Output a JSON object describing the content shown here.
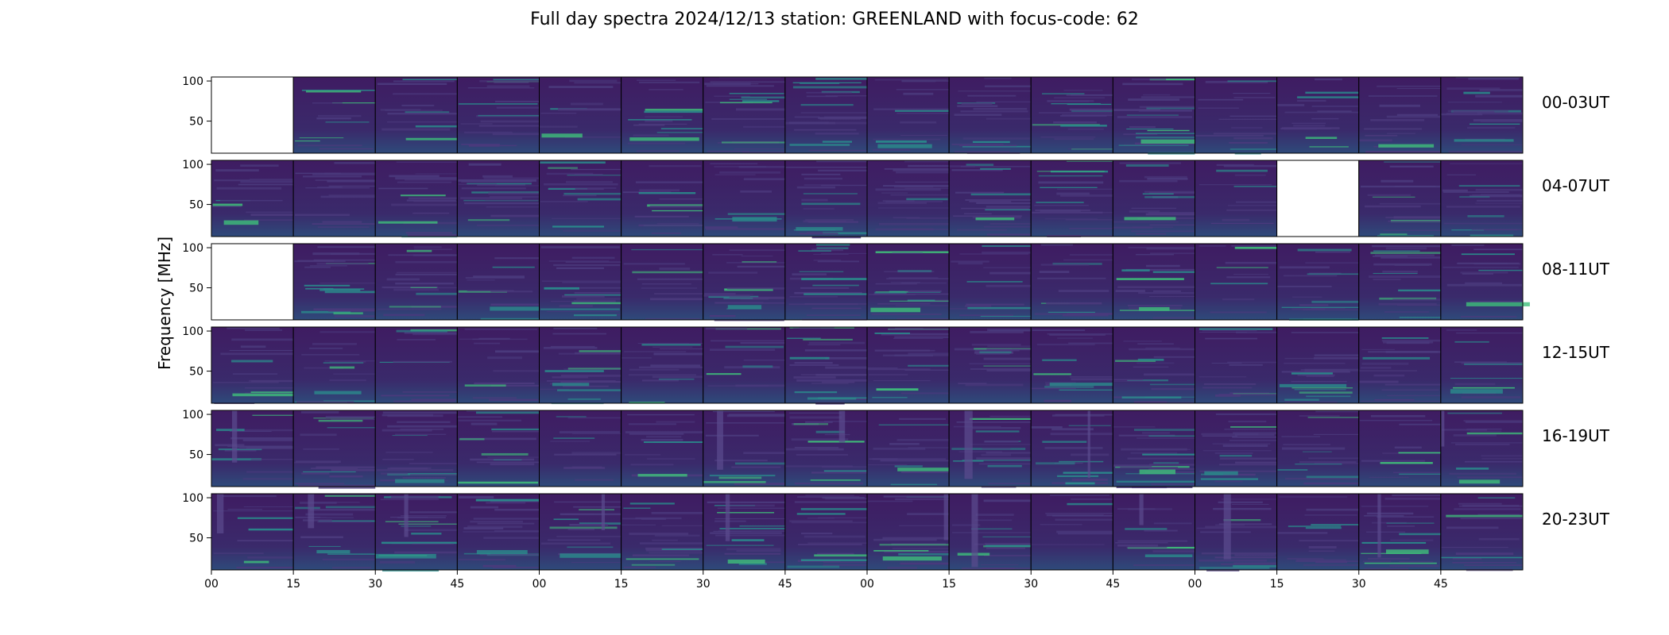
{
  "figure": {
    "title": "Full day spectra 2024/12/13 station: GREENLAND with focus-code: 62"
  },
  "chart_data": {
    "type": "heatmap",
    "title": "Full day spectra 2024/12/13 station: GREENLAND with focus-code: 62",
    "ylabel": "Frequency [MHz]",
    "xlabel": "",
    "ylim": [
      10,
      105
    ],
    "yticks": [
      "100",
      "50"
    ],
    "xticks": [
      "00",
      "15",
      "30",
      "45",
      "00",
      "15",
      "30",
      "45",
      "00",
      "15",
      "30",
      "45",
      "00",
      "15",
      "30",
      "45"
    ],
    "colormap": "viridis",
    "rows": [
      {
        "label": "00-03UT",
        "missing_panels": [
          0
        ]
      },
      {
        "label": "04-07UT",
        "missing_panels": [
          13
        ]
      },
      {
        "label": "08-11UT",
        "missing_panels": [
          0
        ]
      },
      {
        "label": "12-15UT",
        "missing_panels": []
      },
      {
        "label": "16-19UT",
        "missing_panels": []
      },
      {
        "label": "20-23UT",
        "missing_panels": []
      }
    ],
    "panels_per_row": 16,
    "colors": {
      "background_dark": "#3b1a5e",
      "band_teal": "#2a8c8c",
      "band_green": "#3fbf7a",
      "empty_panel": "#ffffff"
    }
  }
}
